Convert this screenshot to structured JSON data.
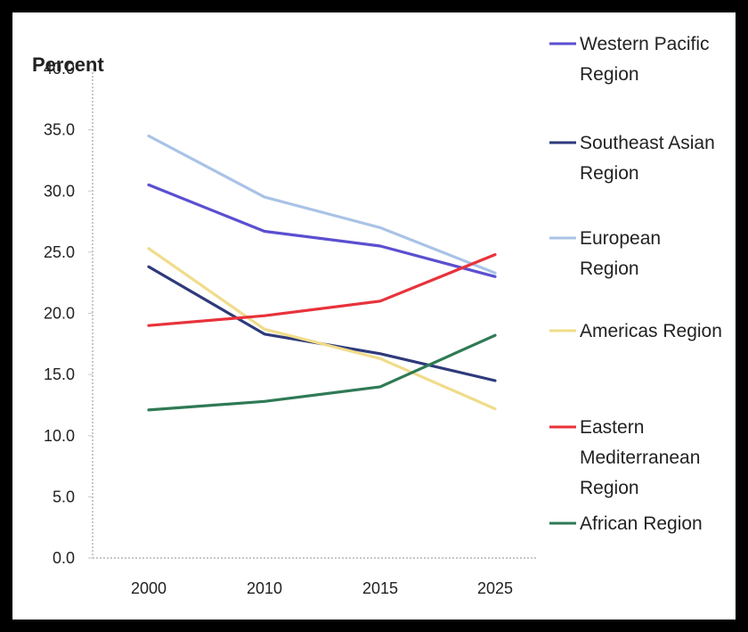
{
  "chart_data": {
    "type": "line",
    "ylabel": "Percent",
    "xlabel": "",
    "x": [
      "2000",
      "2010",
      "2015",
      "2025"
    ],
    "ylim": [
      0,
      40
    ],
    "yticks": [
      "0.0",
      "5.0",
      "10.0",
      "15.0",
      "20.0",
      "25.0",
      "30.0",
      "35.0",
      "40.0"
    ],
    "grid": false,
    "legend_position": "right",
    "series": [
      {
        "name": "Western Pacific Region",
        "legend_lines": [
          "Western Pacific",
          "Region"
        ],
        "color": "#5b4fd0",
        "values": [
          30.5,
          26.7,
          25.5,
          23.0
        ]
      },
      {
        "name": "Southeast Asian Region",
        "legend_lines": [
          "Southeast Asian",
          "Region"
        ],
        "color": "#2e3a7a",
        "values": [
          23.8,
          18.3,
          16.7,
          14.5
        ]
      },
      {
        "name": "European Region",
        "legend_lines": [
          "European",
          "Region"
        ],
        "color": "#a9c3e6",
        "values": [
          34.5,
          29.5,
          27.0,
          23.3
        ]
      },
      {
        "name": "Americas Region",
        "legend_lines": [
          "Americas Region"
        ],
        "color": "#f0dc8a",
        "values": [
          25.3,
          18.7,
          16.3,
          12.2
        ]
      },
      {
        "name": "Eastern Mediterranean Region",
        "legend_lines": [
          "Eastern",
          "Mediterranean",
          "Region"
        ],
        "color": "#e8323a",
        "values": [
          19.0,
          19.8,
          21.0,
          24.8
        ]
      },
      {
        "name": "African Region",
        "legend_lines": [
          "African Region"
        ],
        "color": "#2f7a55",
        "values": [
          12.1,
          12.8,
          14.0,
          18.2
        ]
      }
    ]
  }
}
